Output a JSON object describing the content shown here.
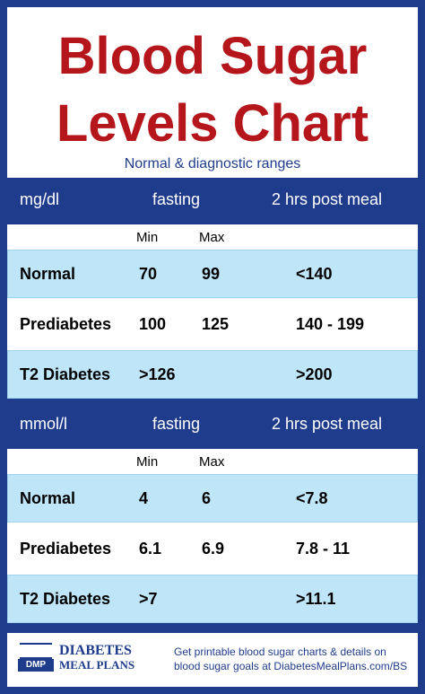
{
  "header": {
    "title_lines": [
      "Blood Sugar",
      "Levels Chart"
    ],
    "subtitle": "Normal & diagnostic ranges"
  },
  "tables": [
    {
      "unit": "mg/dl",
      "fasting": "fasting",
      "post_meal": "2 hrs post meal",
      "min": "Min",
      "max": "Max",
      "rows": [
        {
          "label": "Normal",
          "min": 70,
          "max": 99,
          "post_meal": "<140"
        },
        {
          "label": "Prediabetes",
          "min": 100,
          "max": 125,
          "post_meal": "140 - 199"
        },
        {
          "label": "T2 Diabetes",
          "min": ">126",
          "post_meal": ">200"
        }
      ]
    },
    {
      "unit": "mmol/l",
      "fasting": "fasting",
      "post_meal": "2 hrs post meal",
      "min": "Min",
      "max": "Max",
      "rows": [
        {
          "label": "Normal",
          "min": 4,
          "max": 6,
          "post_meal": "<7.8"
        },
        {
          "label": "Prediabetes",
          "min": 6.1,
          "max": 6.9,
          "post_meal": "7.8 - 11"
        },
        {
          "label": "T2 Diabetes",
          "min": ">7",
          "post_meal": ">11.1"
        }
      ]
    }
  ],
  "footer": {
    "logo_mark": "DMP",
    "logo_line1": "DIABETES",
    "logo_line2": "MEAL PLANS",
    "text_lines": [
      "Get printable blood sugar charts & details on",
      "blood sugar goals at DiabetesMealPlans.com/BS"
    ]
  }
}
